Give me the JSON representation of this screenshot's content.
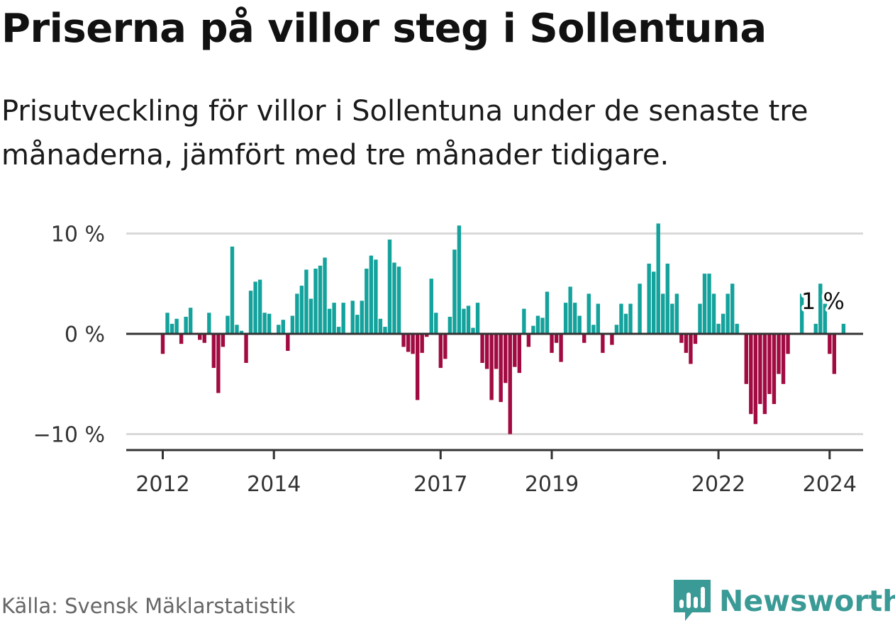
{
  "title": "Priserna på villor steg i Sollentuna",
  "subtitle": "Prisutveckling för villor i Sollentuna under de senaste tre månaderna, jämfört med tre månader tidigare.",
  "source": "Källa: Svensk Mäklarstatistik",
  "brand": {
    "name": "Newsworthy",
    "logo_icon": "newsworthy-logo-icon",
    "color": "#3a9a96"
  },
  "chart_data": {
    "type": "bar",
    "title": "Priserna på villor steg i Sollentuna",
    "xlabel": "",
    "ylabel": "",
    "ylim": [
      -11.5,
      10
    ],
    "grid": true,
    "unit": "%",
    "start": "2012-01",
    "x_ticks": [
      "2012",
      "2014",
      "2017",
      "2019",
      "2022",
      "2024"
    ],
    "y_ticks": [
      {
        "value": 10,
        "label": "10 %"
      },
      {
        "value": 0,
        "label": "0 %"
      },
      {
        "value": -10,
        "label": "−10 %"
      }
    ],
    "colors": {
      "positive": "#13a29c",
      "negative": "#a10b41",
      "grid": "#d9d9d9",
      "axis": "#333333"
    },
    "annotation": {
      "label": "1 %",
      "value": 1,
      "position": "last bar"
    },
    "values": [
      -2,
      2.1,
      1,
      1.5,
      -1,
      1.7,
      2.6,
      0,
      -0.6,
      -0.9,
      2.1,
      -3.4,
      -5.9,
      -1.3,
      1.8,
      8.7,
      0.9,
      0.3,
      -2.9,
      4.3,
      5.2,
      5.4,
      2.1,
      2,
      0,
      0.9,
      1.4,
      -1.7,
      1.8,
      4,
      4.8,
      6.4,
      3.5,
      6.5,
      6.8,
      7.6,
      2.5,
      3.1,
      0.7,
      3.1,
      0,
      3.3,
      1.9,
      3.3,
      6.5,
      7.8,
      7.4,
      1.5,
      0.7,
      9.4,
      7.1,
      6.7,
      -1.3,
      -1.8,
      -2,
      -6.6,
      -1.9,
      -0.3,
      5.5,
      2.1,
      -3.4,
      -2.5,
      1.7,
      8.4,
      10.8,
      2.5,
      2.8,
      0.6,
      3.1,
      -2.9,
      -3.5,
      -6.6,
      -3.5,
      -6.8,
      -4.9,
      -10,
      -3.3,
      -3.9,
      2.5,
      -1.3,
      0.8,
      1.8,
      1.6,
      4.2,
      -1.9,
      -0.9,
      -2.8,
      3.1,
      4.7,
      3.1,
      1.8,
      -0.9,
      4,
      0.9,
      3,
      -1.9,
      0,
      -1.1,
      0.9,
      3,
      2,
      3,
      0,
      5,
      0,
      7,
      6.2,
      11,
      4,
      7,
      3,
      4,
      -0.9,
      -1.9,
      -3,
      -1,
      3,
      6,
      6,
      4,
      1,
      2,
      4,
      5,
      1,
      0,
      -5,
      -8,
      -9,
      -7,
      -8,
      -6,
      -7,
      -4,
      -5,
      -2,
      0,
      0,
      4,
      0,
      0,
      1,
      5,
      3,
      -2,
      -4,
      0,
      1
    ]
  }
}
